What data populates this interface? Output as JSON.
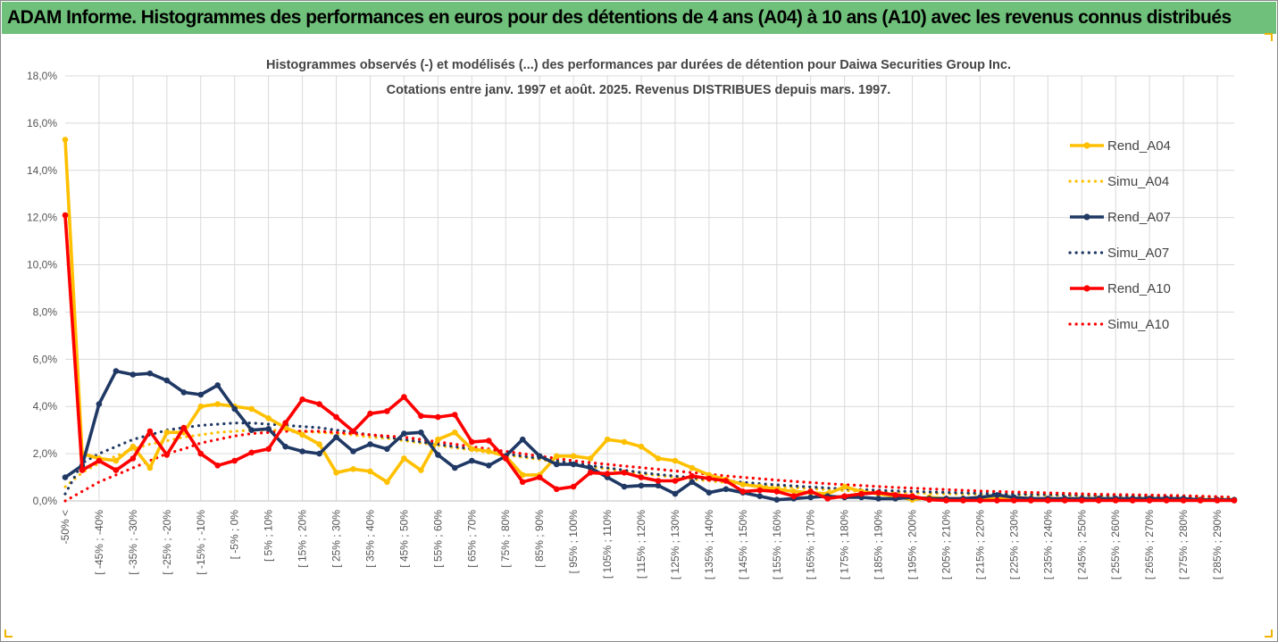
{
  "banner": {
    "title": "ADAM Informe. Histogrammes des performances en euros pour des détentions de 4 ans (A04) à 10 ans (A10) avec les revenus connus distribués"
  },
  "colors": {
    "banner": "#6fc07a",
    "A04": "#ffc000",
    "A07": "#1f3864",
    "A10": "#ff0000",
    "grid": "#d9d9d9"
  },
  "chart_data": {
    "type": "line",
    "title": "Histogrammes observés (-) et modélisés (...) des performances par durées de détention pour Daiwa Securities Group Inc.",
    "subtitle": "Cotations entre janv. 1997 et août. 2025. Revenus DISTRIBUES depuis mars. 1997.",
    "ylim": [
      0,
      18
    ],
    "y_ticks": [
      "0,0%",
      "2,0%",
      "4,0%",
      "6,0%",
      "8,0%",
      "10,0%",
      "12,0%",
      "14,0%",
      "16,0%",
      "18,0%"
    ],
    "x_labels": [
      "-50% <",
      "[ -45% ; -40%",
      "[ -35% ; -30%",
      "[ -25% ; -20%",
      "[ -15% ; -10%",
      "[ -5% ; 0%",
      "[ 5% ; 10%",
      "[ 15% ; 20%",
      "[ 25% ; 30%",
      "[ 35% ; 40%",
      "[ 45% ; 50%",
      "[ 55% ; 60%",
      "[ 65% ; 70%",
      "[ 75% ; 80%",
      "[ 85% ; 90%",
      "[ 95% ; 100%",
      "[ 105% ; 110%",
      "[ 115% ; 120%",
      "[ 125% ; 130%",
      "[ 135% ; 140%",
      "[ 145% ; 150%",
      "[ 155% ; 160%",
      "[ 165% ; 170%",
      "[ 175% ; 180%",
      "[ 185% ; 190%",
      "[ 195% ; 200%",
      "[ 205% ; 210%",
      "[ 215% ; 220%",
      "[ 225% ; 230%",
      "[ 235% ; 240%",
      "[ 245% ; 250%",
      "[ 255% ; 260%",
      "[ 265% ; 270%",
      "[ 275% ; 280%",
      "[ 285% ; 290%"
    ],
    "legend_position": "right",
    "grid": true,
    "series": [
      {
        "name": "Rend_A04",
        "style": "solid",
        "color": "#ffc000",
        "values": [
          15.3,
          2.0,
          1.8,
          1.7,
          2.3,
          1.4,
          2.9,
          2.9,
          4.0,
          4.1,
          4.0,
          3.9,
          3.5,
          3.1,
          2.8,
          2.4,
          1.2,
          1.35,
          1.25,
          0.8,
          1.8,
          1.3,
          2.6,
          2.9,
          2.2,
          2.1,
          1.9,
          1.1,
          1.1,
          1.9,
          1.9,
          1.8,
          2.6,
          2.5,
          2.3,
          1.8,
          1.7,
          1.4,
          1.1,
          0.9,
          0.7,
          0.6,
          0.5,
          0.4,
          0.35,
          0.3,
          0.6,
          0.4,
          0.3,
          0.2,
          0.05,
          0.15,
          0.1,
          0.1,
          0.1,
          0.1,
          0.1,
          0.05,
          0.05,
          0.05,
          0.05,
          0.05,
          0.05,
          0.05,
          0.05,
          0.05,
          0.05,
          0.05,
          0.05,
          0.05
        ]
      },
      {
        "name": "Simu_A04",
        "style": "dotted",
        "color": "#ffc000",
        "values": [
          0.6,
          1.2,
          1.6,
          1.9,
          2.2,
          2.4,
          2.55,
          2.7,
          2.8,
          2.9,
          2.95,
          3.0,
          3.0,
          3.0,
          2.95,
          2.9,
          2.85,
          2.8,
          2.7,
          2.65,
          2.55,
          2.45,
          2.35,
          2.25,
          2.15,
          2.05,
          1.95,
          1.85,
          1.75,
          1.65,
          1.55,
          1.45,
          1.35,
          1.25,
          1.15,
          1.08,
          1.0,
          0.92,
          0.85,
          0.78,
          0.72,
          0.66,
          0.6,
          0.56,
          0.52,
          0.48,
          0.44,
          0.41,
          0.38,
          0.36,
          0.34,
          0.32,
          0.3,
          0.29,
          0.28,
          0.27,
          0.26,
          0.25,
          0.24,
          0.23,
          0.22,
          0.21,
          0.2,
          0.19,
          0.18,
          0.17,
          0.16,
          0.15,
          0.14,
          0.12
        ]
      },
      {
        "name": "Rend_A07",
        "style": "solid",
        "color": "#1f3864",
        "values": [
          1.0,
          1.5,
          4.1,
          5.5,
          5.35,
          5.4,
          5.1,
          4.6,
          4.5,
          4.9,
          3.9,
          3.0,
          3.05,
          2.3,
          2.1,
          2.0,
          2.7,
          2.1,
          2.4,
          2.2,
          2.85,
          2.9,
          1.95,
          1.4,
          1.7,
          1.5,
          1.9,
          2.6,
          1.9,
          1.55,
          1.55,
          1.4,
          1.0,
          0.6,
          0.65,
          0.65,
          0.3,
          0.8,
          0.35,
          0.5,
          0.35,
          0.2,
          0.05,
          0.1,
          0.15,
          0.2,
          0.15,
          0.15,
          0.1,
          0.1,
          0.15,
          0.1,
          0.1,
          0.1,
          0.15,
          0.25,
          0.15,
          0.1,
          0.1,
          0.1,
          0.1,
          0.1,
          0.1,
          0.1,
          0.1,
          0.1,
          0.1,
          0.05,
          0.05,
          0.05
        ]
      },
      {
        "name": "Simu_A07",
        "style": "dotted",
        "color": "#1f3864",
        "values": [
          0.3,
          1.6,
          2.0,
          2.3,
          2.6,
          2.8,
          3.0,
          3.1,
          3.2,
          3.25,
          3.3,
          3.3,
          3.25,
          3.2,
          3.15,
          3.1,
          3.0,
          2.9,
          2.8,
          2.7,
          2.6,
          2.5,
          2.4,
          2.3,
          2.2,
          2.1,
          2.0,
          1.9,
          1.8,
          1.7,
          1.6,
          1.5,
          1.4,
          1.3,
          1.2,
          1.12,
          1.05,
          0.98,
          0.91,
          0.85,
          0.79,
          0.73,
          0.68,
          0.63,
          0.59,
          0.55,
          0.51,
          0.48,
          0.45,
          0.42,
          0.4,
          0.38,
          0.36,
          0.34,
          0.32,
          0.3,
          0.29,
          0.28,
          0.27,
          0.26,
          0.25,
          0.24,
          0.23,
          0.22,
          0.21,
          0.2,
          0.19,
          0.18,
          0.17,
          0.15
        ]
      },
      {
        "name": "Rend_A10",
        "style": "solid",
        "color": "#ff0000",
        "values": [
          12.1,
          1.3,
          1.7,
          1.3,
          1.8,
          2.95,
          1.95,
          3.1,
          2.0,
          1.5,
          1.7,
          2.05,
          2.2,
          3.3,
          4.3,
          4.1,
          3.55,
          2.95,
          3.7,
          3.8,
          4.4,
          3.6,
          3.55,
          3.65,
          2.5,
          2.55,
          1.8,
          0.8,
          1.0,
          0.5,
          0.6,
          1.2,
          1.15,
          1.2,
          1.0,
          0.85,
          0.85,
          1.05,
          0.95,
          0.85,
          0.4,
          0.45,
          0.4,
          0.2,
          0.4,
          0.1,
          0.2,
          0.3,
          0.35,
          0.25,
          0.2,
          0.05,
          0.02,
          0.02,
          0.02,
          0.02,
          0.02,
          0.02,
          0.02,
          0.02,
          0.02,
          0.02,
          0.02,
          0.02,
          0.02,
          0.02,
          0.02,
          0.02,
          0.02,
          0.02
        ]
      },
      {
        "name": "Simu_A10",
        "style": "dotted",
        "color": "#ff0000",
        "values": [
          0.0,
          0.4,
          0.8,
          1.1,
          1.4,
          1.7,
          2.0,
          2.2,
          2.45,
          2.6,
          2.75,
          2.85,
          2.9,
          2.95,
          2.95,
          2.95,
          2.9,
          2.85,
          2.8,
          2.75,
          2.7,
          2.6,
          2.5,
          2.4,
          2.3,
          2.2,
          2.1,
          2.0,
          1.9,
          1.8,
          1.7,
          1.62,
          1.55,
          1.48,
          1.41,
          1.34,
          1.27,
          1.2,
          1.13,
          1.06,
          1.0,
          0.94,
          0.88,
          0.83,
          0.78,
          0.73,
          0.69,
          0.65,
          0.61,
          0.57,
          0.54,
          0.51,
          0.48,
          0.45,
          0.42,
          0.4,
          0.38,
          0.36,
          0.34,
          0.32,
          0.3,
          0.28,
          0.27,
          0.26,
          0.25,
          0.24,
          0.22,
          0.2,
          0.18,
          0.15
        ]
      }
    ]
  }
}
